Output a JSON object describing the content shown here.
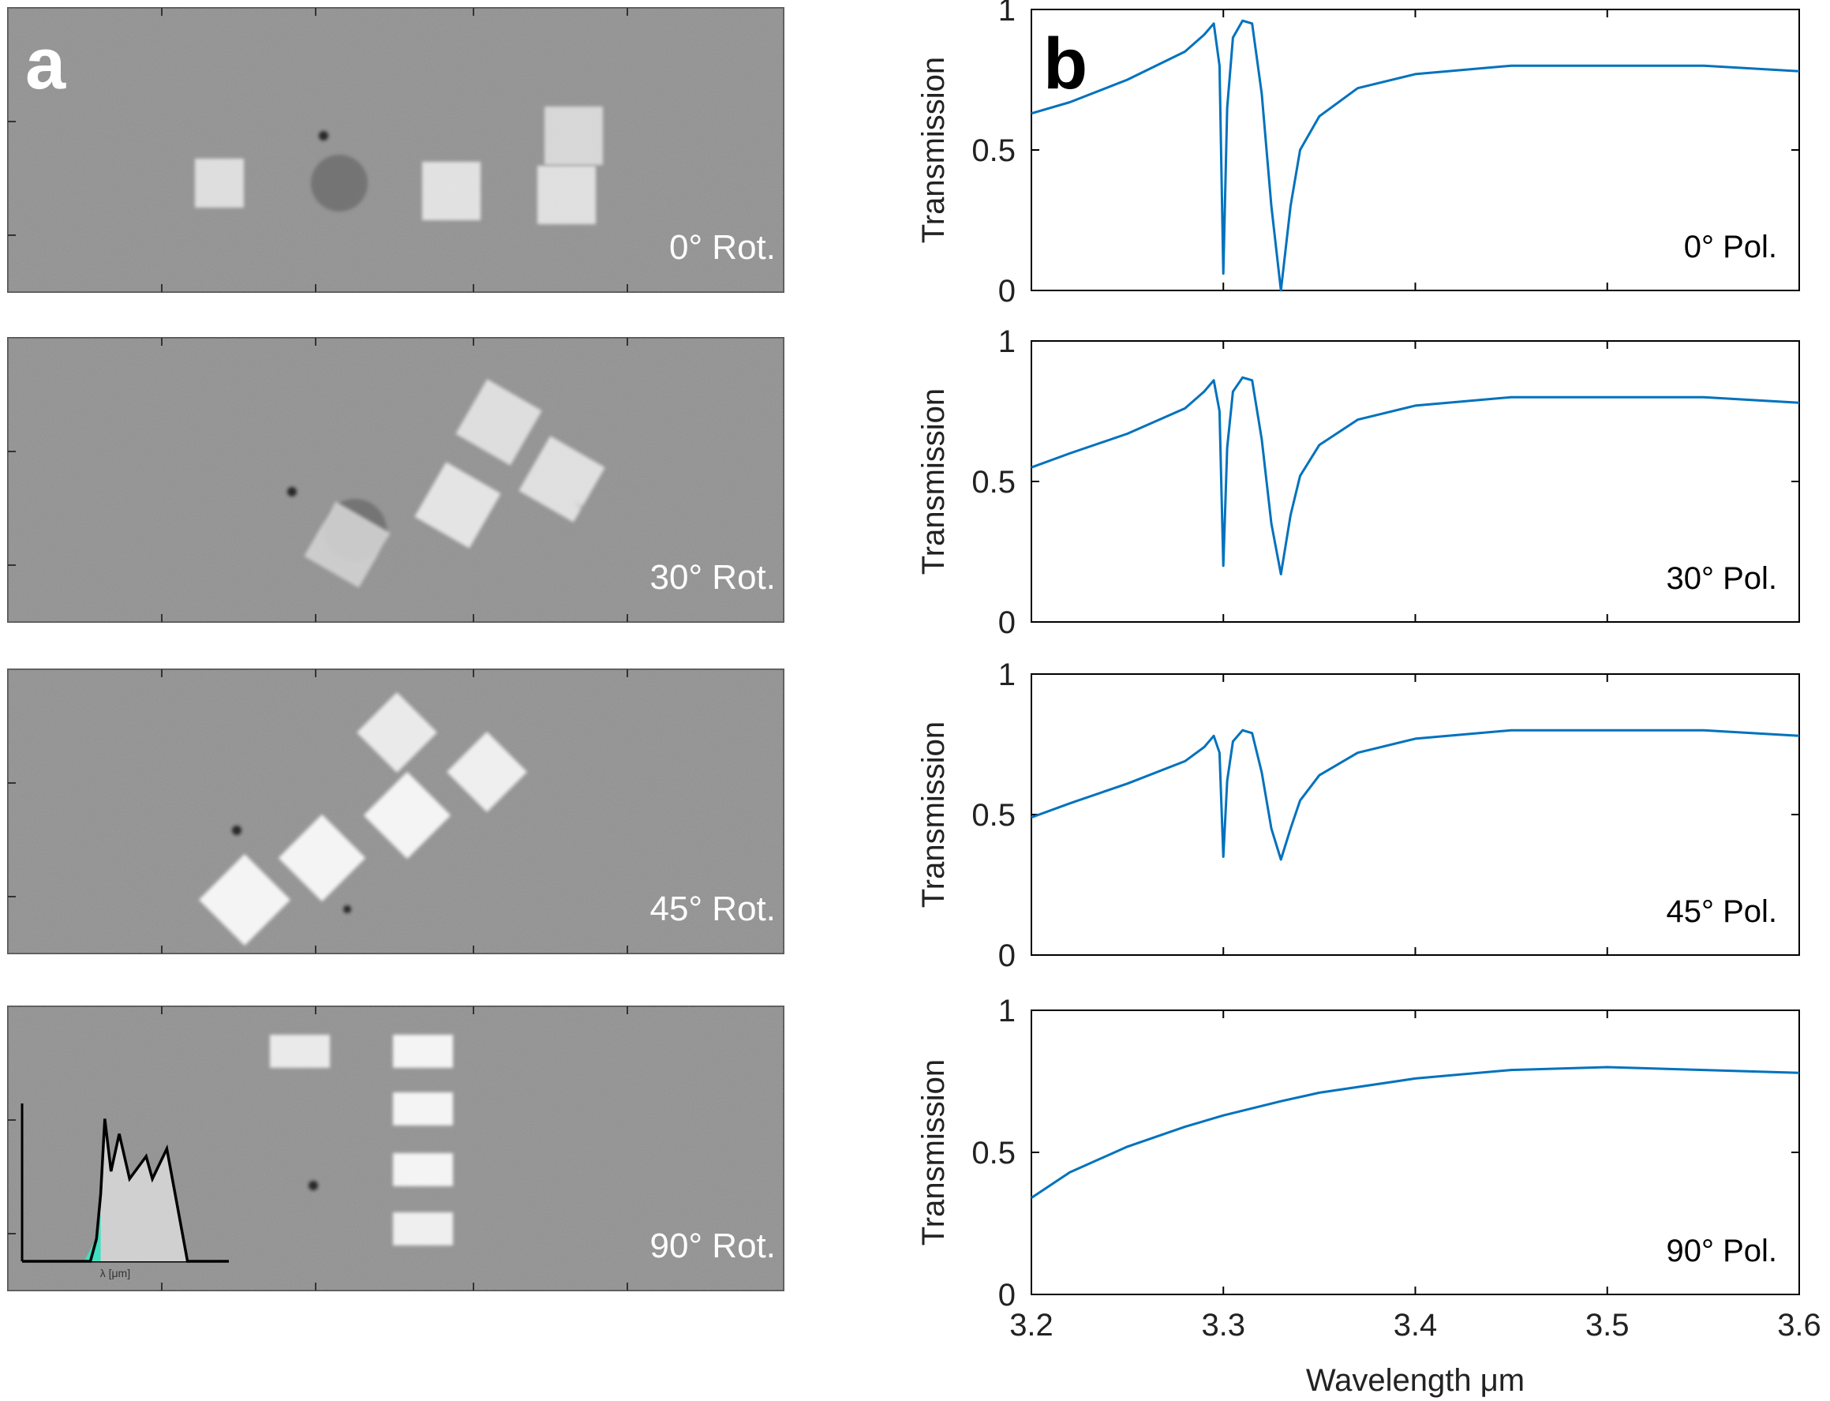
{
  "panel_labels": {
    "a": "a",
    "b": "b"
  },
  "micrographs": [
    {
      "label": "0° Rot.",
      "angle": 0
    },
    {
      "label": "30° Rot.",
      "angle": 30
    },
    {
      "label": "45° Rot.",
      "angle": 45
    },
    {
      "label": "90° Rot.",
      "angle": 90
    }
  ],
  "inset": {
    "xlabel": "λ [μm]",
    "highlight_color": "#40e0c0"
  },
  "colors": {
    "line": "#0072bd",
    "micrograph_bg": "#8c8c8c"
  },
  "chart_data": [
    {
      "type": "line",
      "annotation": "0° Pol.",
      "xlabel": "",
      "ylabel": "Transmission",
      "xlim": [
        3.2,
        3.6
      ],
      "ylim": [
        0,
        1
      ],
      "xticks": [
        "3.2",
        "3.3",
        "3.4",
        "3.5",
        "3.6"
      ],
      "yticks": [
        "0",
        "0.5",
        "1"
      ],
      "series": [
        {
          "x": [
            3.2,
            3.22,
            3.25,
            3.28,
            3.29,
            3.295,
            3.298,
            3.3,
            3.302,
            3.305,
            3.31,
            3.315,
            3.32,
            3.325,
            3.33,
            3.335,
            3.34,
            3.35,
            3.37,
            3.4,
            3.45,
            3.5,
            3.55,
            3.6
          ],
          "y": [
            0.63,
            0.67,
            0.75,
            0.85,
            0.91,
            0.95,
            0.8,
            0.06,
            0.65,
            0.9,
            0.96,
            0.95,
            0.7,
            0.3,
            0.0,
            0.3,
            0.5,
            0.62,
            0.72,
            0.77,
            0.8,
            0.8,
            0.8,
            0.78
          ]
        }
      ]
    },
    {
      "type": "line",
      "annotation": "30° Pol.",
      "xlabel": "",
      "ylabel": "Transmission",
      "xlim": [
        3.2,
        3.6
      ],
      "ylim": [
        0,
        1
      ],
      "xticks": [
        "3.2",
        "3.3",
        "3.4",
        "3.5",
        "3.6"
      ],
      "yticks": [
        "0",
        "0.5",
        "1"
      ],
      "series": [
        {
          "x": [
            3.2,
            3.22,
            3.25,
            3.28,
            3.29,
            3.295,
            3.298,
            3.3,
            3.302,
            3.305,
            3.31,
            3.315,
            3.32,
            3.325,
            3.33,
            3.335,
            3.34,
            3.35,
            3.37,
            3.4,
            3.45,
            3.5,
            3.55,
            3.6
          ],
          "y": [
            0.55,
            0.6,
            0.67,
            0.76,
            0.82,
            0.86,
            0.75,
            0.2,
            0.62,
            0.82,
            0.87,
            0.86,
            0.65,
            0.35,
            0.17,
            0.38,
            0.52,
            0.63,
            0.72,
            0.77,
            0.8,
            0.8,
            0.8,
            0.78
          ]
        }
      ]
    },
    {
      "type": "line",
      "annotation": "45° Pol.",
      "xlabel": "",
      "ylabel": "Transmission",
      "xlim": [
        3.2,
        3.6
      ],
      "ylim": [
        0,
        1
      ],
      "xticks": [
        "3.2",
        "3.3",
        "3.4",
        "3.5",
        "3.6"
      ],
      "yticks": [
        "0",
        "0.5",
        "1"
      ],
      "series": [
        {
          "x": [
            3.2,
            3.22,
            3.25,
            3.28,
            3.29,
            3.295,
            3.298,
            3.3,
            3.302,
            3.305,
            3.31,
            3.315,
            3.32,
            3.325,
            3.33,
            3.335,
            3.34,
            3.35,
            3.37,
            3.4,
            3.45,
            3.5,
            3.55,
            3.6
          ],
          "y": [
            0.49,
            0.54,
            0.61,
            0.69,
            0.74,
            0.78,
            0.72,
            0.35,
            0.62,
            0.76,
            0.8,
            0.79,
            0.65,
            0.45,
            0.34,
            0.45,
            0.55,
            0.64,
            0.72,
            0.77,
            0.8,
            0.8,
            0.8,
            0.78
          ]
        }
      ]
    },
    {
      "type": "line",
      "annotation": "90° Pol.",
      "xlabel": "Wavelength μm",
      "ylabel": "Transmission",
      "xlim": [
        3.2,
        3.6
      ],
      "ylim": [
        0,
        1
      ],
      "xticks": [
        "3.2",
        "3.3",
        "3.4",
        "3.5",
        "3.6"
      ],
      "yticks": [
        "0",
        "0.5",
        "1"
      ],
      "series": [
        {
          "x": [
            3.2,
            3.22,
            3.25,
            3.28,
            3.3,
            3.33,
            3.35,
            3.4,
            3.45,
            3.5,
            3.55,
            3.6
          ],
          "y": [
            0.34,
            0.43,
            0.52,
            0.59,
            0.63,
            0.68,
            0.71,
            0.76,
            0.79,
            0.8,
            0.79,
            0.78
          ]
        }
      ]
    }
  ]
}
